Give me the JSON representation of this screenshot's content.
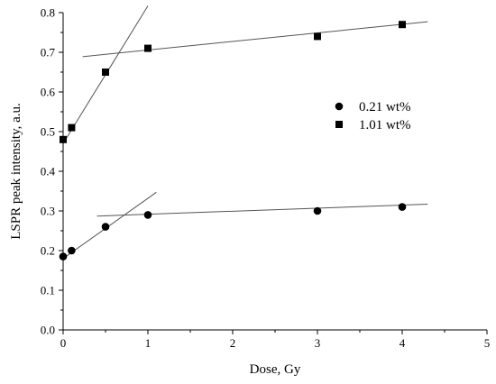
{
  "chart_data": {
    "type": "scatter",
    "title": "",
    "xlabel": "Dose, Gy",
    "ylabel": "LSPR peak intensity, a.u.",
    "xlim": [
      0,
      5
    ],
    "ylim": [
      0,
      0.8
    ],
    "xticks": [
      "0",
      "1",
      "2",
      "3",
      "4",
      "5"
    ],
    "yticks": [
      "0.0",
      "0.1",
      "0.2",
      "0.3",
      "0.4",
      "0.5",
      "0.6",
      "0.7",
      "0.8"
    ],
    "grid": false,
    "legend_position": "right",
    "series": [
      {
        "name": "0.21 wt%",
        "marker": "circle",
        "x": [
          0,
          0.1,
          0.5,
          1,
          3,
          4
        ],
        "y": [
          0.185,
          0.2,
          0.26,
          0.29,
          0.3,
          0.31
        ]
      },
      {
        "name": "1.01 wt%",
        "marker": "square",
        "x": [
          0,
          0.1,
          0.5,
          1,
          3,
          4
        ],
        "y": [
          0.48,
          0.51,
          0.65,
          0.71,
          0.74,
          0.77
        ]
      }
    ],
    "fit_lines": [
      {
        "x": [
          0,
          1.1
        ],
        "y": [
          0.18,
          0.347
        ]
      },
      {
        "x": [
          0.4,
          4.3
        ],
        "y": [
          0.287,
          0.317
        ]
      },
      {
        "x": [
          0,
          1.0
        ],
        "y": [
          0.47,
          0.817
        ]
      },
      {
        "x": [
          0.23,
          4.3
        ],
        "y": [
          0.689,
          0.777
        ]
      }
    ],
    "colors": {
      "markers": "#000000",
      "fit_lines": "#555555",
      "axes": "#000000"
    }
  }
}
